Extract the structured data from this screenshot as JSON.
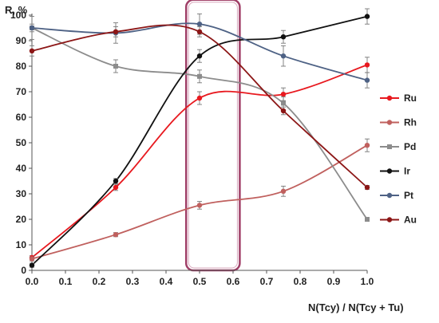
{
  "chart_data": {
    "type": "line",
    "title": "",
    "ylabel": "R, %",
    "xlabel": "N(Tcy) / N(Tcy + Tu)",
    "xlim": [
      0,
      1
    ],
    "ylim": [
      0,
      100
    ],
    "x_ticks": [
      0,
      0.1,
      0.2,
      0.3,
      0.4,
      0.5,
      0.6,
      0.7,
      0.8,
      0.9,
      1
    ],
    "x_tick_labels": [
      "0.0",
      "0.1",
      "0.2",
      "0.3",
      "0.4",
      "0.5",
      "0.6",
      "0.7",
      "0.8",
      "0.9",
      "1.0"
    ],
    "y_ticks": [
      0,
      10,
      20,
      30,
      40,
      50,
      60,
      70,
      80,
      90,
      100
    ],
    "y_tick_labels": [
      "0",
      "10",
      "20",
      "30",
      "40",
      "50",
      "60",
      "70",
      "80",
      "90",
      "100"
    ],
    "grid": false,
    "legend_position": "right",
    "x": [
      0,
      0.25,
      0.5,
      0.75,
      1.0
    ],
    "series": [
      {
        "name": "Ru",
        "color": "#e8191f",
        "values": [
          5,
          32.5,
          67.5,
          69,
          80.5
        ],
        "errors": [
          0.8,
          1.2,
          2.5,
          2.5,
          3
        ]
      },
      {
        "name": "Rh",
        "color": "#c0605e",
        "values": [
          4.5,
          14,
          25.5,
          31,
          49
        ],
        "errors": [
          0.8,
          0.8,
          1.5,
          2,
          2.5
        ]
      },
      {
        "name": "Pd",
        "color": "#8c8c8c",
        "values": [
          95,
          80,
          76,
          65.5,
          20
        ],
        "errors": [
          1.5,
          2.5,
          2.5,
          2.5,
          0.8
        ]
      },
      {
        "name": "Ir",
        "color": "#111111",
        "values": [
          2,
          35,
          84,
          91.5,
          99.5
        ],
        "errors": [
          0.8,
          1,
          2.5,
          2.5,
          3
        ]
      },
      {
        "name": "Pt",
        "color": "#4e6285",
        "values": [
          95,
          93,
          96.5,
          84,
          74.5
        ],
        "errors": [
          4.5,
          4,
          4,
          4,
          3
        ]
      },
      {
        "name": "Au",
        "color": "#8c1616",
        "values": [
          86,
          93.5,
          93.5,
          62.5,
          32.5
        ],
        "errors": [
          2,
          2,
          2,
          1.5,
          0.8
        ]
      }
    ],
    "annotations": [
      {
        "type": "highlight-rectangle",
        "x_range": [
          0.46,
          0.62
        ],
        "y_range": [
          0,
          106
        ],
        "color": "#a04068"
      }
    ]
  }
}
